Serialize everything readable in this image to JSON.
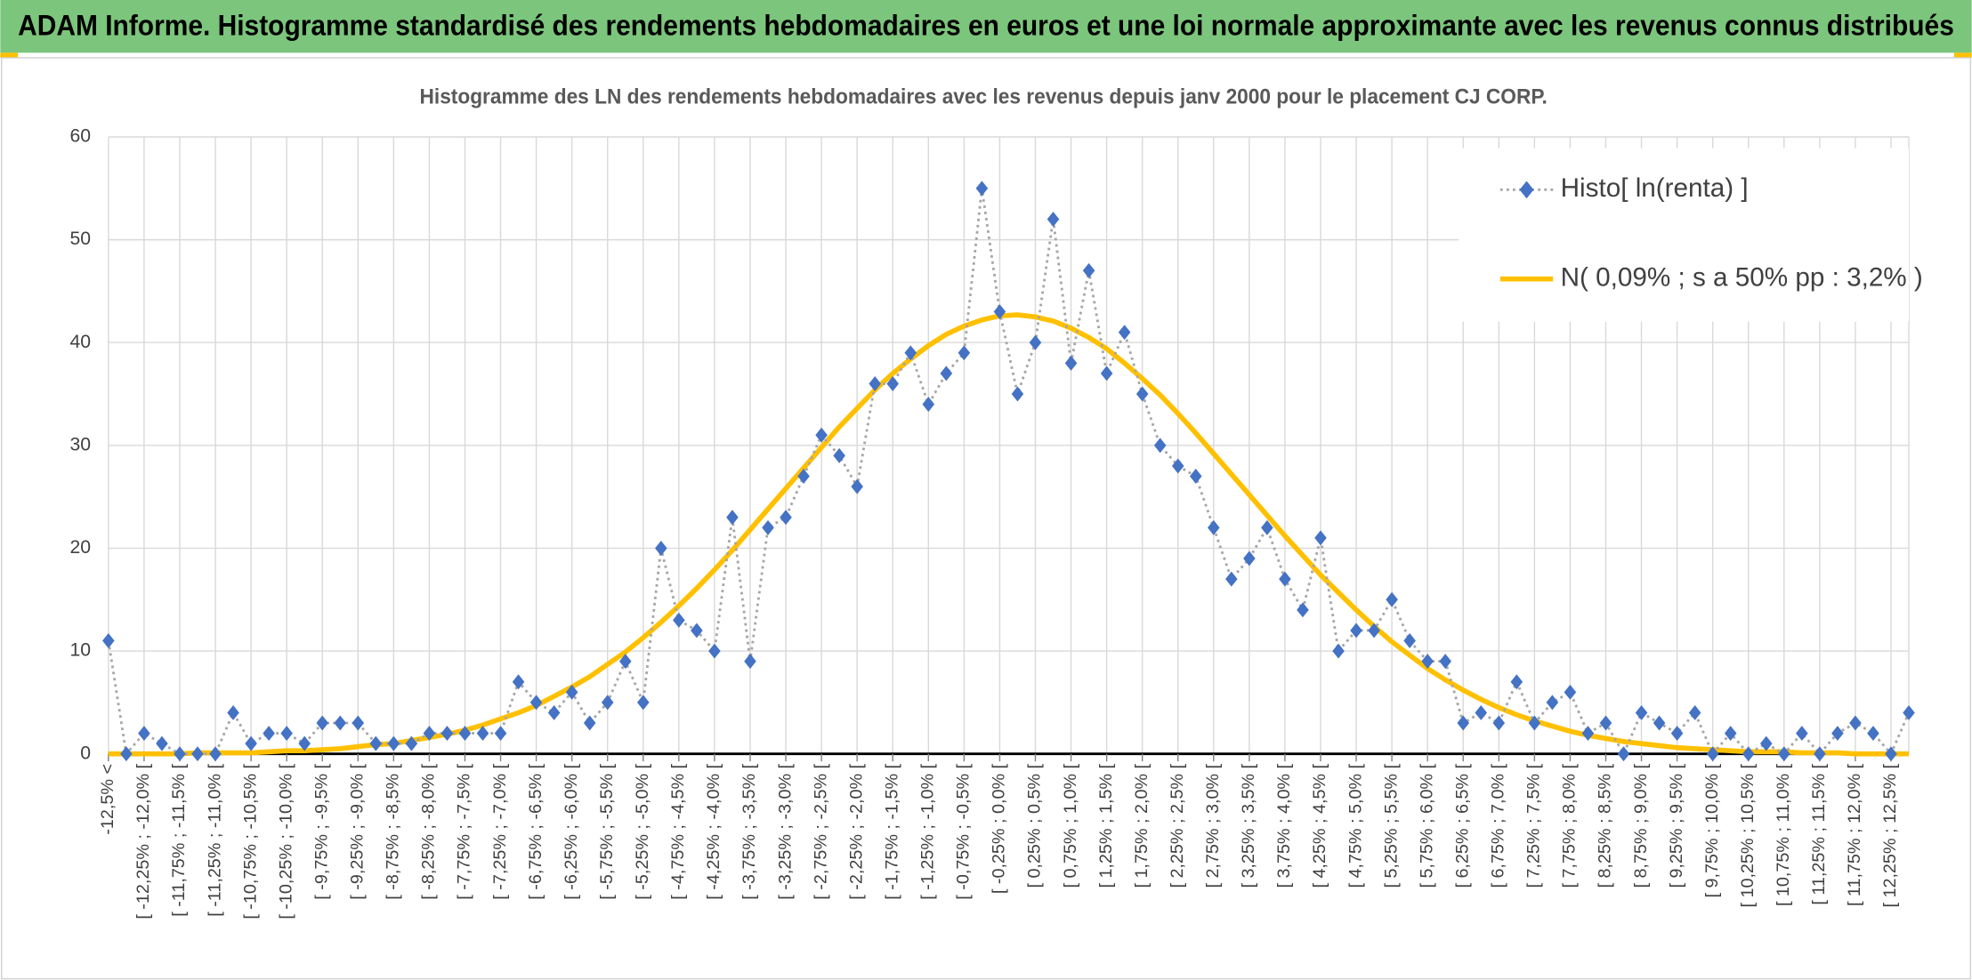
{
  "chart_data": {
    "type": "line",
    "header": "ADAM Informe. Histogramme standardisé des rendements hebdomadaires en euros et une loi normale approximante avec les revenus connus distribués",
    "title": "Histogramme des LN des rendements hebdomadaires avec les revenus depuis janv 2000 pour le placement CJ CORP.",
    "categories": [
      "-12,5% <",
      null,
      "[ -12,25% ; -12,0% [",
      null,
      "[ -11,75% ; -11,5% [",
      null,
      "[ -11,25% ; -11,0% [",
      null,
      "[ -10,75% ; -10,5% [",
      null,
      "[ -10,25% ; -10,0% [",
      null,
      "[ -9,75% ; -9,5% [",
      null,
      "[ -9,25% ; -9,0% [",
      null,
      "[ -8,75% ; -8,5% [",
      null,
      "[ -8,25% ; -8,0% [",
      null,
      "[ -7,75% ; -7,5% [",
      null,
      "[ -7,25% ; -7,0% [",
      null,
      "[ -6,75% ; -6,5% [",
      null,
      "[ -6,25% ; -6,0% [",
      null,
      "[ -5,75% ; -5,5% [",
      null,
      "[ -5,25% ; -5,0% [",
      null,
      "[ -4,75% ; -4,5% [",
      null,
      "[ -4,25% ; -4,0% [",
      null,
      "[ -3,75% ; -3,5% [",
      null,
      "[ -3,25% ; -3,0% [",
      null,
      "[ -2,75% ; -2,5% [",
      null,
      "[ -2,25% ; -2,0% [",
      null,
      "[ -1,75% ; -1,5% [",
      null,
      "[ -1,25% ; -1,0% [",
      null,
      "[ -0,75% ; -0,5% [",
      null,
      "[ -0,25% ; 0,0% [",
      null,
      "[ 0,25% ; 0,5% [",
      null,
      "[ 0,75% ; 1,0% [",
      null,
      "[ 1,25% ; 1,5% [",
      null,
      "[ 1,75% ; 2,0% [",
      null,
      "[ 2,25% ; 2,5% [",
      null,
      "[ 2,75% ; 3,0% [",
      null,
      "[ 3,25% ; 3,5% [",
      null,
      "[ 3,75% ; 4,0% [",
      null,
      "[ 4,25% ; 4,5% [",
      null,
      "[ 4,75% ; 5,0% [",
      null,
      "[ 5,25% ; 5,5% [",
      null,
      "[ 5,75% ; 6,0% [",
      null,
      "[ 6,25% ; 6,5% [",
      null,
      "[ 6,75% ; 7,0% [",
      null,
      "[ 7,25% ; 7,5% [",
      null,
      "[ 7,75% ; 8,0% [",
      null,
      "[ 8,25% ; 8,5% [",
      null,
      "[ 8,75% ; 9,0% [",
      null,
      "[ 9,25% ; 9,5% [",
      null,
      "[ 9,75% ; 10,0% [",
      null,
      "[ 10,25% ; 10,5% [",
      null,
      "[ 10,75% ; 11,0% [",
      null,
      "[ 11,25% ; 11,5% [",
      null,
      "[ 11,75% ; 12,0% [",
      null,
      "[ 12,25% ; 12,5% [",
      null
    ],
    "series": [
      {
        "name": "Histo[ ln(renta) ]",
        "color": "#4472c4",
        "line_color": "#a6a6a6",
        "style": "dotted-markers",
        "values": [
          11,
          0,
          2,
          1,
          0,
          0,
          0,
          4,
          1,
          2,
          2,
          1,
          3,
          3,
          3,
          1,
          1,
          1,
          2,
          2,
          2,
          2,
          2,
          7,
          5,
          4,
          6,
          3,
          5,
          9,
          5,
          20,
          13,
          12,
          10,
          23,
          9,
          22,
          23,
          27,
          31,
          29,
          26,
          36,
          36,
          39,
          34,
          37,
          39,
          55,
          43,
          35,
          40,
          52,
          38,
          47,
          37,
          41,
          35,
          30,
          28,
          27,
          22,
          17,
          19,
          22,
          17,
          14,
          21,
          10,
          12,
          12,
          15,
          11,
          9,
          9,
          3,
          4,
          3,
          7,
          3,
          5,
          6,
          2,
          3,
          0,
          4,
          3,
          2,
          4,
          0,
          2,
          0,
          1,
          0,
          2,
          0,
          2,
          3,
          2,
          0,
          4
        ]
      },
      {
        "name": "N( 0,09% ; s a 50% pp : 3,2% )",
        "color": "#ffc000",
        "style": "line",
        "values": [
          0,
          0,
          0,
          0,
          0,
          0.1,
          0.1,
          0.1,
          0.1,
          0.2,
          0.3,
          0.3,
          0.4,
          0.5,
          0.7,
          0.9,
          1.0,
          1.3,
          1.6,
          1.9,
          2.3,
          2.8,
          3.4,
          4.0,
          4.7,
          5.6,
          6.5,
          7.5,
          8.7,
          9.9,
          11.3,
          12.8,
          14.4,
          16.1,
          17.9,
          19.8,
          21.8,
          23.8,
          25.8,
          27.8,
          29.8,
          31.8,
          33.6,
          35.4,
          37.0,
          38.4,
          39.7,
          40.8,
          41.6,
          42.2,
          42.6,
          42.7,
          42.5,
          42.1,
          41.4,
          40.5,
          39.4,
          38.0,
          36.5,
          34.9,
          33.1,
          31.2,
          29.2,
          27.2,
          25.2,
          23.2,
          21.2,
          19.3,
          17.4,
          15.7,
          14.0,
          12.4,
          10.9,
          9.6,
          8.3,
          7.2,
          6.2,
          5.3,
          4.5,
          3.8,
          3.2,
          2.7,
          2.2,
          1.8,
          1.5,
          1.2,
          1.0,
          0.8,
          0.6,
          0.5,
          0.4,
          0.3,
          0.2,
          0.2,
          0.2,
          0.1,
          0.1,
          0.1,
          0,
          0,
          0,
          0
        ]
      }
    ],
    "ylim": [
      0,
      60
    ],
    "yticks": [
      0,
      10,
      20,
      30,
      40,
      50,
      60
    ],
    "grid": true,
    "legend": "top-right"
  }
}
